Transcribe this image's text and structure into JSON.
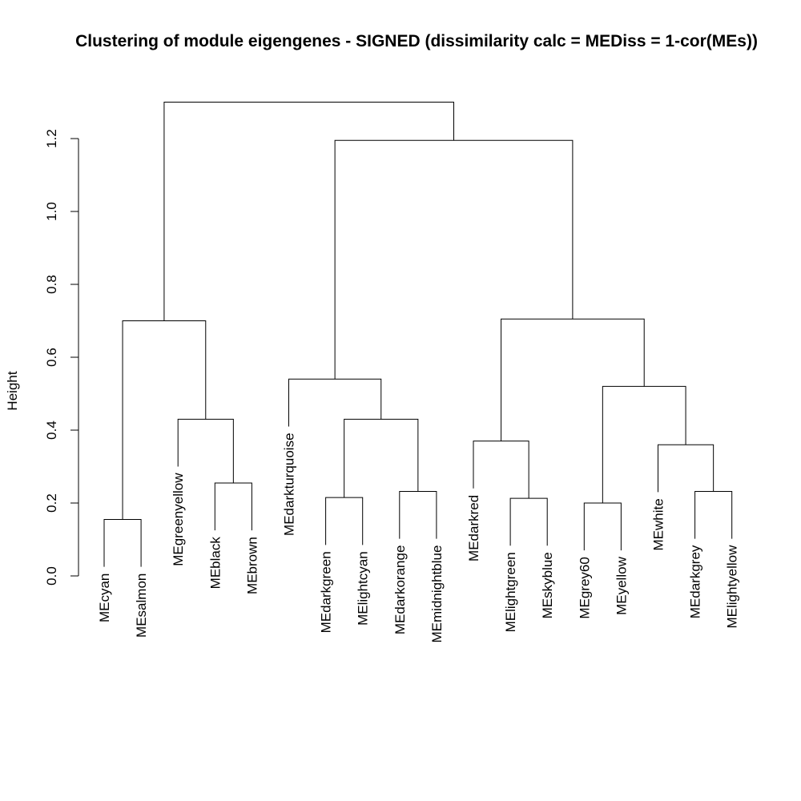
{
  "chart_data": {
    "type": "dendrogram",
    "title": "Clustering of module eigengenes - SIGNED (dissimilarity calc = MEDiss = 1-cor(MEs))",
    "ylabel": "Height",
    "xlabel": "",
    "ylim": [
      0,
      1.3
    ],
    "yticks": [
      0.0,
      0.2,
      0.4,
      0.6,
      0.8,
      1.0,
      1.2
    ],
    "ytick_labels": [
      "0.0",
      "0.2",
      "0.4",
      "0.6",
      "0.8",
      "1.0",
      "1.2"
    ],
    "leaves": [
      "MEcyan",
      "MEsalmon",
      "MEgreenyellow",
      "MEblack",
      "MEbrown",
      "MEdarkturquoise",
      "MEdarkgreen",
      "MElightcyan",
      "MEdarkorange",
      "MEmidnightblue",
      "MEdarkred",
      "MElightgreen",
      "MEskyblue",
      "MEgrey60",
      "MEyellow",
      "MEwhite",
      "MEdarkgrey",
      "MElightyellow"
    ],
    "merges": [
      {
        "left": "MEcyan",
        "right": "MEsalmon",
        "height": 0.155
      },
      {
        "left": "MEblack",
        "right": "MEbrown",
        "height": 0.255
      },
      {
        "left": "MEgreenyellow",
        "right": 1,
        "height": 0.43
      },
      {
        "left": 0,
        "right": 2,
        "height": 0.7
      },
      {
        "left": "MEdarkgreen",
        "right": "MElightcyan",
        "height": 0.215
      },
      {
        "left": "MEdarkorange",
        "right": "MEmidnightblue",
        "height": 0.232
      },
      {
        "left": 4,
        "right": 5,
        "height": 0.43
      },
      {
        "left": "MEdarkturquoise",
        "right": 6,
        "height": 0.54
      },
      {
        "left": "MElightgreen",
        "right": "MEskyblue",
        "height": 0.213
      },
      {
        "left": "MEdarkred",
        "right": 8,
        "height": 0.37
      },
      {
        "left": "MEgrey60",
        "right": "MEyellow",
        "height": 0.2
      },
      {
        "left": "MEdarkgrey",
        "right": "MElightyellow",
        "height": 0.232
      },
      {
        "left": "MEwhite",
        "right": 11,
        "height": 0.36
      },
      {
        "left": 10,
        "right": 12,
        "height": 0.52
      },
      {
        "left": 9,
        "right": 13,
        "height": 0.705
      },
      {
        "left": 7,
        "right": 14,
        "height": 1.195
      },
      {
        "left": 3,
        "right": 15,
        "height": 1.3
      }
    ]
  }
}
